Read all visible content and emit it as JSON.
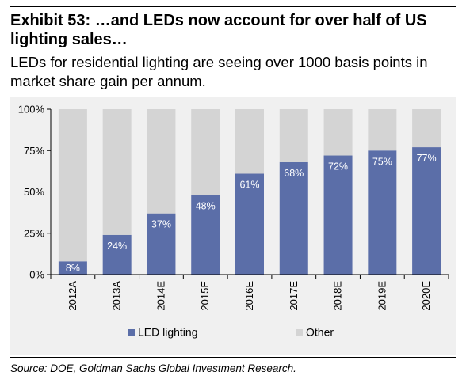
{
  "header": {
    "title": "Exhibit 53: …and LEDs now account for over half of US lighting sales…",
    "subtitle": "LEDs for residential lighting are seeing over 1000 basis points in market share gain per annum."
  },
  "chart_data": {
    "type": "bar",
    "stacked": true,
    "categories": [
      "2012A",
      "2013A",
      "2014E",
      "2015E",
      "2016E",
      "2017E",
      "2018E",
      "2019E",
      "2020E"
    ],
    "series": [
      {
        "name": "LED lighting",
        "values": [
          8,
          24,
          37,
          48,
          61,
          68,
          72,
          75,
          77
        ],
        "color": "#5b6ea8"
      },
      {
        "name": "Other",
        "values": [
          92,
          76,
          63,
          52,
          39,
          32,
          28,
          25,
          23
        ],
        "color": "#d4d4d4"
      }
    ],
    "data_labels": [
      "8%",
      "24%",
      "37%",
      "48%",
      "61%",
      "68%",
      "72%",
      "75%",
      "77%"
    ],
    "yticks": [
      "0%",
      "25%",
      "50%",
      "75%",
      "100%"
    ],
    "ylim": [
      0,
      100
    ],
    "grid": false,
    "legend_position": "bottom"
  },
  "footer": {
    "source": "Source:  DOE, Goldman Sachs Global Investment Research."
  }
}
